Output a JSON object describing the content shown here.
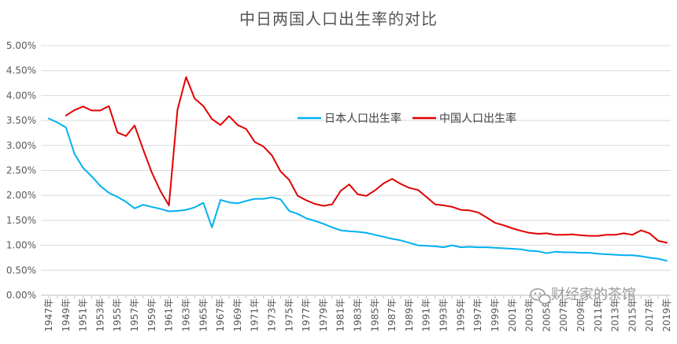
{
  "chart_data": {
    "type": "line",
    "title": "中日两国人口出生率的对比",
    "ylim": [
      0,
      0.05
    ],
    "yticks": [
      "0.00%",
      "0.50%",
      "1.00%",
      "1.50%",
      "2.00%",
      "2.50%",
      "3.00%",
      "3.50%",
      "4.00%",
      "4.50%",
      "5.00%"
    ],
    "x": [
      1947,
      1948,
      1949,
      1950,
      1951,
      1952,
      1953,
      1954,
      1955,
      1956,
      1957,
      1958,
      1959,
      1960,
      1961,
      1962,
      1963,
      1964,
      1965,
      1966,
      1967,
      1968,
      1969,
      1970,
      1971,
      1972,
      1973,
      1974,
      1975,
      1976,
      1977,
      1978,
      1979,
      1980,
      1981,
      1982,
      1983,
      1984,
      1985,
      1986,
      1987,
      1988,
      1989,
      1990,
      1991,
      1992,
      1993,
      1994,
      1995,
      1996,
      1997,
      1998,
      1999,
      2000,
      2001,
      2002,
      2003,
      2004,
      2005,
      2006,
      2007,
      2008,
      2009,
      2010,
      2011,
      2012,
      2013,
      2014,
      2015,
      2016,
      2017,
      2018,
      2019
    ],
    "xtick_labels": [
      "1947年",
      "1949年",
      "1951年",
      "1953年",
      "1955年",
      "1957年",
      "1959年",
      "1961年",
      "1963年",
      "1965年",
      "1967年",
      "1969年",
      "1971年",
      "1973年",
      "1975年",
      "1977年",
      "1979年",
      "1981年",
      "1983年",
      "1985年",
      "1987年",
      "1989年",
      "1991年",
      "1993年",
      "1995年",
      "1997年",
      "1999年",
      "2001年",
      "2003年",
      "2005年",
      "2007年",
      "2009年",
      "2011年",
      "2013年",
      "2015年",
      "2017年",
      "2019年"
    ],
    "legend_position": "center-right",
    "grid": true,
    "series": [
      {
        "name": "日本人口出生率",
        "color": "#00b0f0",
        "values": [
          0.0354,
          0.0346,
          0.0336,
          0.0283,
          0.0255,
          0.0238,
          0.0219,
          0.0205,
          0.0197,
          0.0187,
          0.0174,
          0.0181,
          0.0177,
          0.0173,
          0.0168,
          0.0169,
          0.0171,
          0.0176,
          0.0185,
          0.0136,
          0.0191,
          0.0186,
          0.0184,
          0.0189,
          0.0193,
          0.0193,
          0.0196,
          0.0192,
          0.0169,
          0.0163,
          0.0154,
          0.0149,
          0.0143,
          0.0136,
          0.013,
          0.0128,
          0.0127,
          0.0125,
          0.0121,
          0.0117,
          0.0113,
          0.011,
          0.0105,
          0.01,
          0.0099,
          0.0098,
          0.0096,
          0.01,
          0.0096,
          0.0097,
          0.0096,
          0.0096,
          0.0095,
          0.0094,
          0.0093,
          0.0092,
          0.0089,
          0.0088,
          0.0084,
          0.0087,
          0.0086,
          0.0086,
          0.0085,
          0.0085,
          0.0083,
          0.0082,
          0.0081,
          0.008,
          0.008,
          0.0078,
          0.0075,
          0.0073,
          0.0069
        ]
      },
      {
        "name": "中国人口出生率",
        "color": "#e00000",
        "values": [
          null,
          null,
          0.036,
          0.0371,
          0.0378,
          0.037,
          0.037,
          0.0379,
          0.0326,
          0.0319,
          0.034,
          0.0292,
          0.0246,
          0.0209,
          0.018,
          0.0372,
          0.0437,
          0.0394,
          0.0379,
          0.0353,
          0.0341,
          0.0359,
          0.0341,
          0.0333,
          0.0307,
          0.0298,
          0.028,
          0.0248,
          0.0231,
          0.0199,
          0.019,
          0.0183,
          0.0179,
          0.0182,
          0.0209,
          0.0222,
          0.0202,
          0.0199,
          0.021,
          0.0224,
          0.0233,
          0.0223,
          0.0215,
          0.0211,
          0.0197,
          0.0182,
          0.018,
          0.0177,
          0.0171,
          0.017,
          0.0166,
          0.0156,
          0.0145,
          0.014,
          0.0134,
          0.0129,
          0.0125,
          0.0123,
          0.0124,
          0.0121,
          0.0121,
          0.0122,
          0.012,
          0.0119,
          0.0119,
          0.0121,
          0.0121,
          0.0124,
          0.0121,
          0.013,
          0.0124,
          0.0109,
          0.0105
        ]
      }
    ]
  },
  "watermark": "财经家的茶馆"
}
